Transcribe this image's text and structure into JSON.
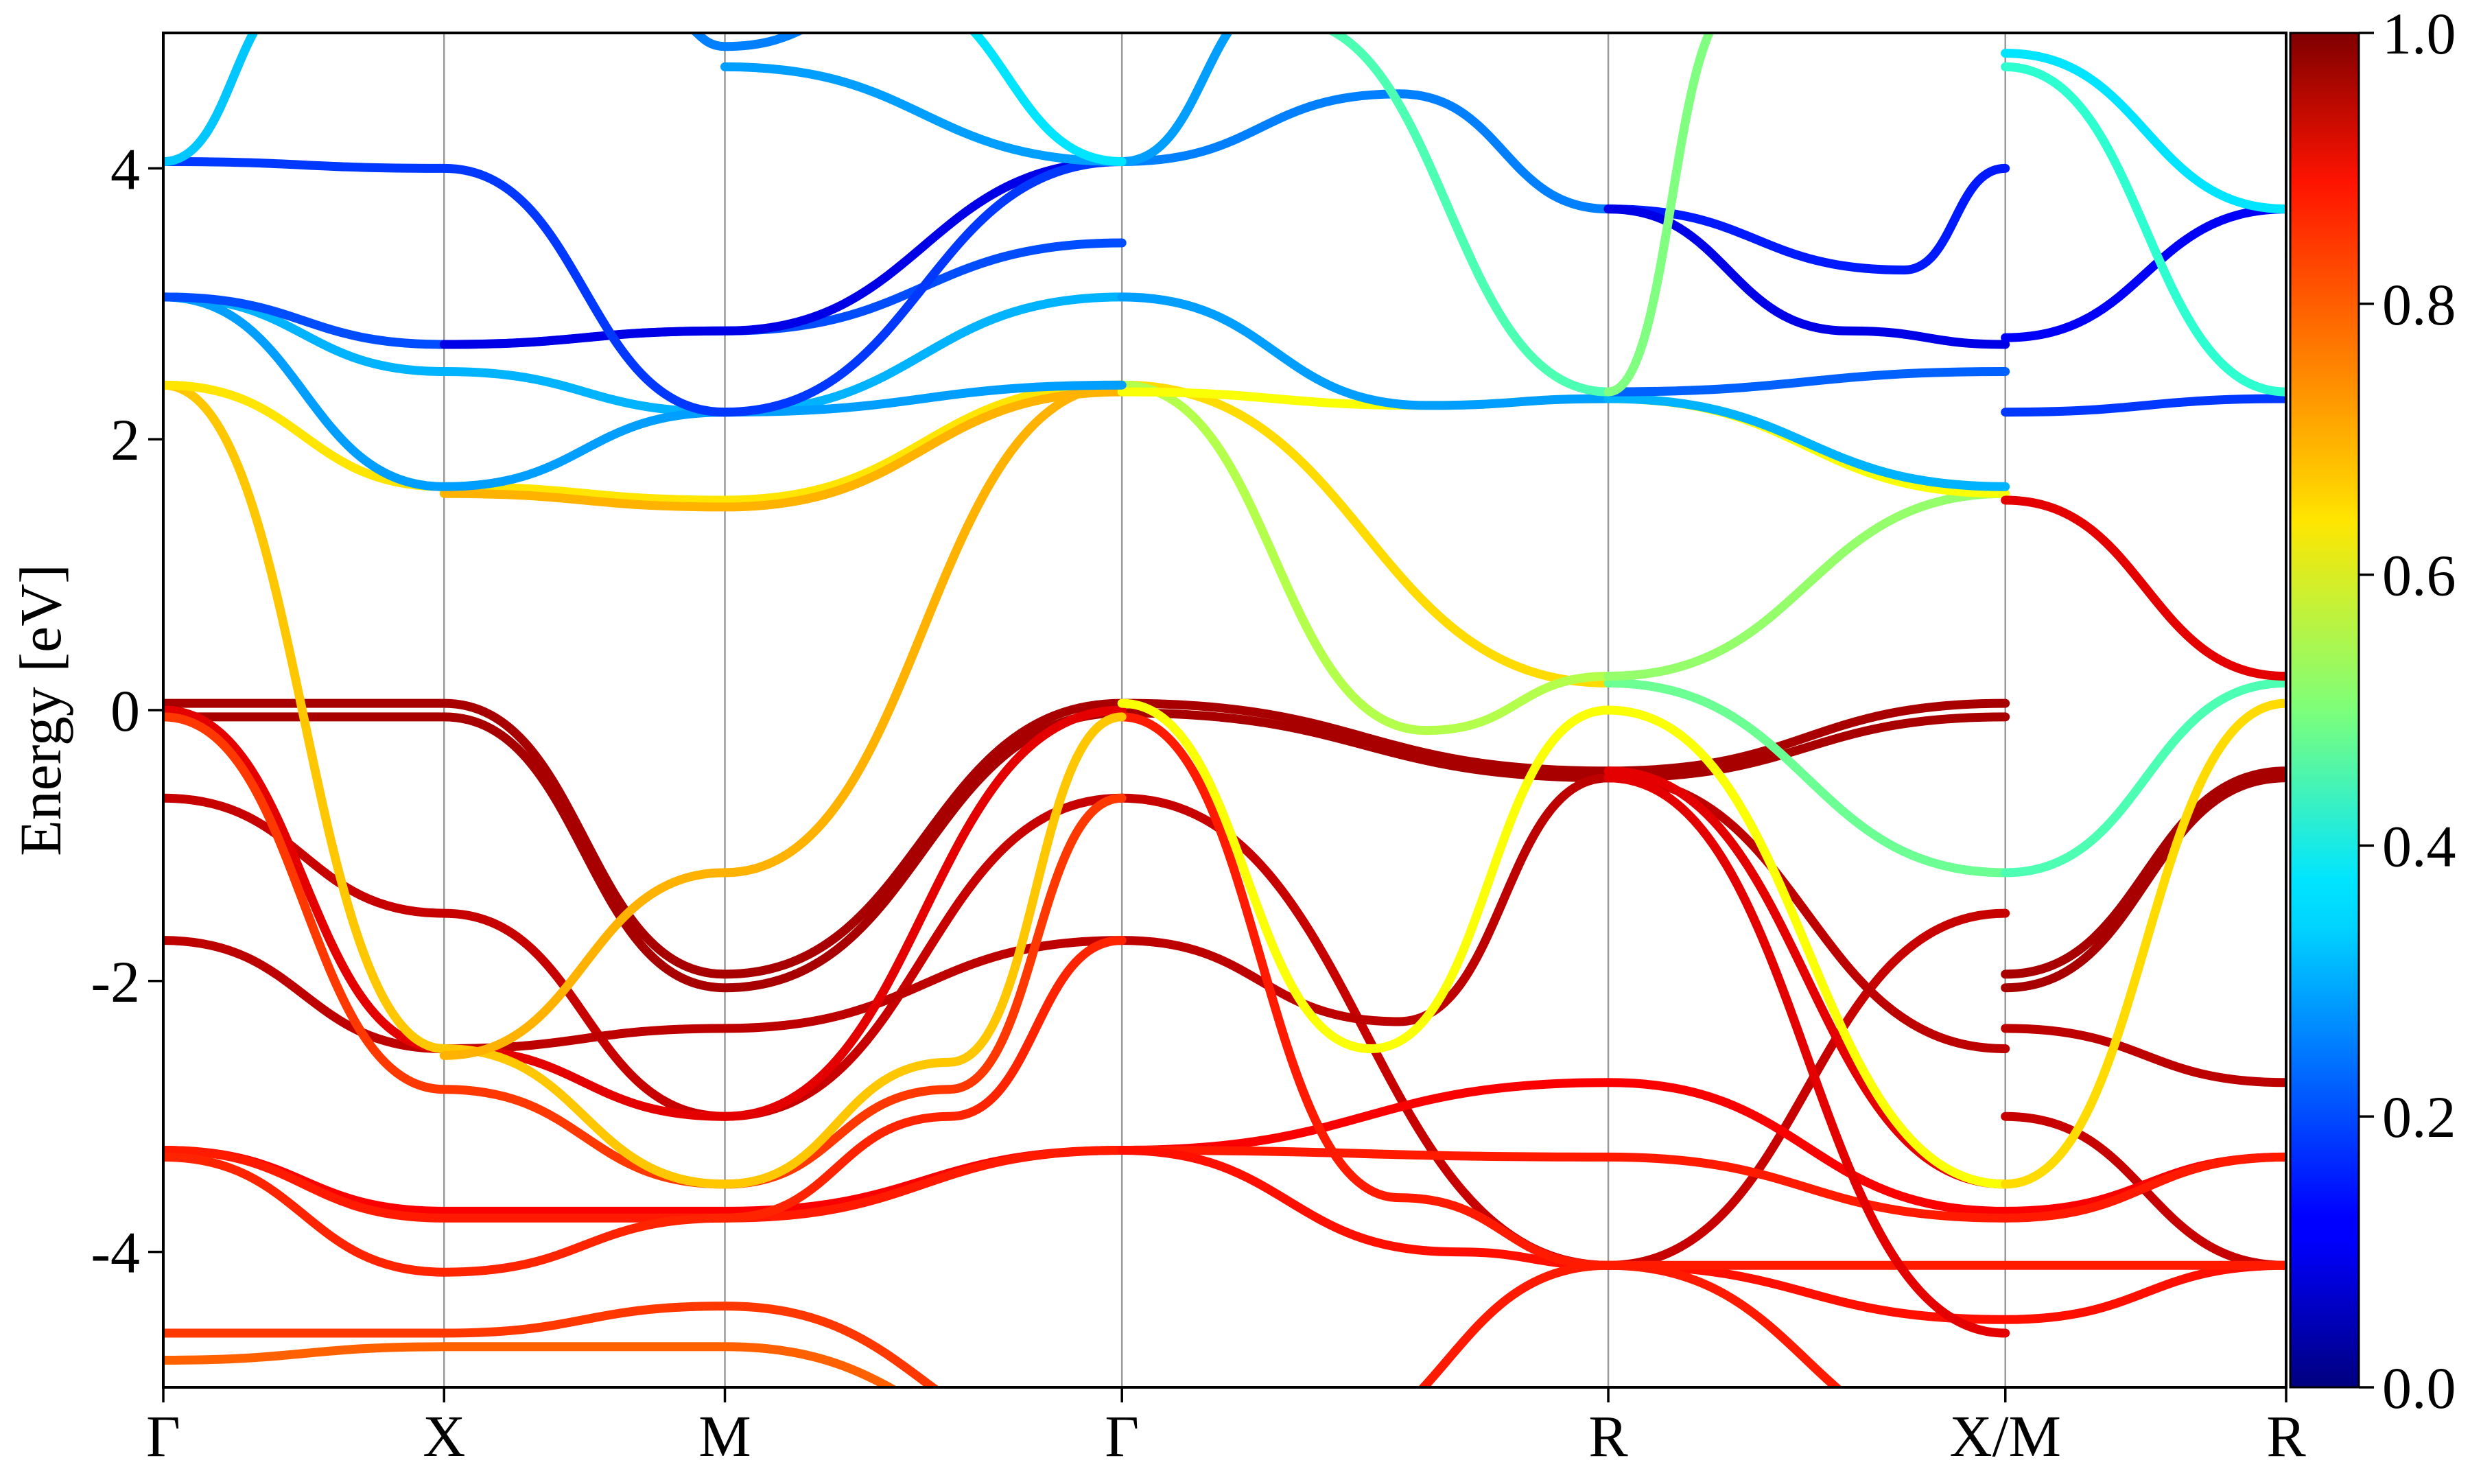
{
  "chart_data": {
    "type": "line",
    "ylabel": "Energy [eV]",
    "ylim": [
      -5,
      5
    ],
    "y_ticks": [
      "-4",
      "-2",
      "0",
      "2",
      "4"
    ],
    "grid": "vertical lines at high-symmetry points",
    "k_points": [
      {
        "label": "Γ",
        "k": 0.0
      },
      {
        "label": "X",
        "k": 0.5
      },
      {
        "label": "M",
        "k": 1.0
      },
      {
        "label": "Γ",
        "k": 1.707
      },
      {
        "label": "R",
        "k": 2.573
      },
      {
        "label": "X/M",
        "k": 3.28
      },
      {
        "label": "R",
        "k": 3.78
      }
    ],
    "colorbar": {
      "min": 0.0,
      "max": 1.0,
      "ticks": [
        "0.0",
        "0.2",
        "0.4",
        "0.6",
        "0.8",
        "1.0"
      ],
      "colormap": "jet"
    },
    "series": [
      {
        "color": 0.96,
        "points": [
          [
            0,
            0.05
          ],
          [
            0.5,
            0.05
          ],
          [
            1.0,
            -1.95
          ],
          [
            1.707,
            0.05
          ],
          [
            2.573,
            -0.45
          ],
          [
            3.28,
            0.05
          ]
        ]
      },
      {
        "color": 0.96,
        "points": [
          [
            0,
            -0.05
          ],
          [
            0.5,
            -0.05
          ],
          [
            1.0,
            -2.05
          ],
          [
            1.707,
            -0.02
          ],
          [
            2.573,
            -0.5
          ],
          [
            3.28,
            -0.05
          ]
        ]
      },
      {
        "color": 0.96,
        "points": [
          [
            3.28,
            -1.95
          ],
          [
            3.78,
            -0.45
          ]
        ]
      },
      {
        "color": 0.96,
        "points": [
          [
            3.28,
            -2.05
          ],
          [
            3.78,
            -0.5
          ]
        ]
      },
      {
        "color": 0.93,
        "points": [
          [
            0,
            -0.65
          ],
          [
            0.5,
            -1.5
          ],
          [
            1.0,
            -3.0
          ],
          [
            1.707,
            -0.65
          ],
          [
            2.573,
            -4.1
          ],
          [
            3.28,
            -1.5
          ]
        ]
      },
      {
        "color": 0.93,
        "points": [
          [
            3.28,
            -3.0
          ],
          [
            3.78,
            -4.1
          ]
        ]
      },
      {
        "color": 0.94,
        "points": [
          [
            0,
            -1.7
          ],
          [
            0.5,
            -2.5
          ],
          [
            1.0,
            -2.35
          ],
          [
            1.707,
            -1.7
          ],
          [
            2.2,
            -2.3
          ],
          [
            2.573,
            -0.5
          ]
        ]
      },
      {
        "color": 0.94,
        "points": [
          [
            2.573,
            -0.5
          ],
          [
            3.28,
            -2.5
          ]
        ]
      },
      {
        "color": 0.94,
        "points": [
          [
            3.28,
            -2.35
          ],
          [
            3.78,
            -2.75
          ]
        ]
      },
      {
        "color": 0.9,
        "points": [
          [
            0,
            0.0
          ],
          [
            0.5,
            -2.5
          ],
          [
            1.0,
            -3.0
          ],
          [
            1.707,
            0.0
          ]
        ]
      },
      {
        "color": 0.88,
        "points": [
          [
            0,
            -3.25
          ],
          [
            0.5,
            -3.7
          ],
          [
            1.0,
            -3.7
          ],
          [
            1.707,
            -3.25
          ],
          [
            2.573,
            -2.75
          ],
          [
            3.28,
            -3.7
          ]
        ]
      },
      {
        "color": 0.88,
        "points": [
          [
            3.28,
            -3.7
          ],
          [
            3.78,
            -3.3
          ]
        ]
      },
      {
        "color": 0.85,
        "points": [
          [
            0,
            -3.25
          ],
          [
            0.5,
            -3.75
          ],
          [
            1.0,
            -3.75
          ],
          [
            1.707,
            -3.25
          ],
          [
            2.573,
            -3.3
          ],
          [
            3.28,
            -3.75
          ]
        ]
      },
      {
        "color": 0.85,
        "points": [
          [
            3.28,
            -3.75
          ],
          [
            3.78,
            -3.3
          ]
        ]
      },
      {
        "color": 0.84,
        "points": [
          [
            0,
            -3.3
          ],
          [
            0.5,
            -4.15
          ],
          [
            1.0,
            -3.75
          ],
          [
            1.4,
            -3.0
          ],
          [
            1.707,
            -1.7
          ]
        ]
      },
      {
        "color": 0.86,
        "points": [
          [
            1.707,
            -3.25
          ],
          [
            2.3,
            -4.0
          ],
          [
            2.573,
            -4.1
          ],
          [
            3.28,
            -4.5
          ],
          [
            3.78,
            -4.1
          ]
        ]
      },
      {
        "color": 0.82,
        "points": [
          [
            0,
            -0.05
          ],
          [
            0.5,
            -2.8
          ],
          [
            1.0,
            -3.5
          ],
          [
            1.4,
            -2.8
          ],
          [
            1.707,
            -0.65
          ]
        ]
      },
      {
        "color": 0.85,
        "points": [
          [
            1.707,
            -0.05
          ],
          [
            2.2,
            -3.6
          ],
          [
            2.573,
            -4.1
          ],
          [
            3.28,
            -4.1
          ],
          [
            3.78,
            -4.1
          ]
        ]
      },
      {
        "color": 0.9,
        "points": [
          [
            2.573,
            -0.45
          ],
          [
            3.28,
            -3.5
          ]
        ]
      },
      {
        "color": 0.9,
        "points": [
          [
            2.573,
            -0.5
          ],
          [
            3.28,
            -4.6
          ]
        ]
      },
      {
        "color": 0.82,
        "points": [
          [
            0,
            -4.6
          ],
          [
            0.5,
            -4.6
          ],
          [
            1.0,
            -4.4
          ],
          [
            1.707,
            -5.5
          ]
        ]
      },
      {
        "color": 0.78,
        "points": [
          [
            0,
            -4.8
          ],
          [
            0.5,
            -4.7
          ],
          [
            1.0,
            -4.7
          ],
          [
            1.707,
            -5.6
          ]
        ]
      },
      {
        "color": 0.85,
        "points": [
          [
            2.0,
            -5.5
          ],
          [
            2.573,
            -4.1
          ],
          [
            3.28,
            -5.5
          ]
        ]
      },
      {
        "color": 0.68,
        "points": [
          [
            0,
            2.4
          ],
          [
            0.5,
            -2.5
          ],
          [
            1.0,
            -3.5
          ],
          [
            1.4,
            -2.6
          ],
          [
            1.707,
            -0.05
          ]
        ]
      },
      {
        "color": 0.62,
        "points": [
          [
            1.707,
            0.05
          ],
          [
            2.15,
            -2.5
          ],
          [
            2.573,
            0.0
          ],
          [
            3.28,
            -3.5
          ]
        ]
      },
      {
        "color": 0.66,
        "points": [
          [
            3.28,
            -3.5
          ],
          [
            3.78,
            0.05
          ]
        ]
      },
      {
        "color": 0.7,
        "points": [
          [
            0.5,
            -2.55
          ],
          [
            1.0,
            -1.2
          ],
          [
            1.707,
            2.4
          ]
        ]
      },
      {
        "color": 0.66,
        "points": [
          [
            1.707,
            2.4
          ],
          [
            2.573,
            0.2
          ]
        ]
      },
      {
        "color": 0.48,
        "points": [
          [
            2.573,
            0.2
          ],
          [
            3.28,
            -1.2
          ]
        ]
      },
      {
        "color": 0.45,
        "points": [
          [
            3.28,
            -1.2
          ],
          [
            3.78,
            0.2
          ]
        ]
      },
      {
        "color": 0.55,
        "points": [
          [
            1.707,
            2.4
          ],
          [
            2.25,
            -0.15
          ],
          [
            2.573,
            0.25
          ]
        ]
      },
      {
        "color": 0.52,
        "points": [
          [
            2.573,
            0.25
          ],
          [
            3.28,
            1.6
          ]
        ]
      },
      {
        "color": 0.65,
        "points": [
          [
            0,
            2.4
          ],
          [
            0.5,
            1.65
          ],
          [
            1.0,
            1.55
          ],
          [
            1.707,
            2.4
          ]
        ]
      },
      {
        "color": 0.7,
        "points": [
          [
            0.5,
            1.6
          ],
          [
            1.0,
            1.5
          ],
          [
            1.707,
            2.35
          ]
        ]
      },
      {
        "color": 0.62,
        "points": [
          [
            1.707,
            2.35
          ],
          [
            2.25,
            2.25
          ],
          [
            2.573,
            2.3
          ],
          [
            3.28,
            1.6
          ]
        ]
      },
      {
        "color": 0.9,
        "points": [
          [
            3.28,
            1.55
          ],
          [
            3.78,
            0.25
          ]
        ]
      },
      {
        "color": 0.3,
        "points": [
          [
            0,
            3.05
          ],
          [
            0.5,
            2.5
          ],
          [
            1.0,
            2.2
          ],
          [
            1.707,
            3.05
          ]
        ]
      },
      {
        "color": 0.28,
        "points": [
          [
            0,
            3.05
          ],
          [
            0.5,
            1.65
          ],
          [
            1.0,
            2.2
          ],
          [
            1.707,
            2.4
          ]
        ]
      },
      {
        "color": 0.28,
        "points": [
          [
            1.707,
            3.05
          ],
          [
            2.25,
            2.25
          ],
          [
            2.573,
            2.3
          ]
        ]
      },
      {
        "color": 0.3,
        "points": [
          [
            2.573,
            2.3
          ],
          [
            3.28,
            1.65
          ]
        ]
      },
      {
        "color": 0.2,
        "points": [
          [
            0,
            3.05
          ],
          [
            0.5,
            2.7
          ],
          [
            1.0,
            2.8
          ],
          [
            1.707,
            3.45
          ]
        ]
      },
      {
        "color": 0.1,
        "points": [
          [
            0.5,
            2.7
          ],
          [
            1.0,
            2.8
          ],
          [
            1.707,
            4.05
          ]
        ]
      },
      {
        "color": 0.18,
        "points": [
          [
            0,
            4.05
          ],
          [
            0.5,
            4.0
          ],
          [
            1.0,
            2.2
          ],
          [
            1.707,
            4.05
          ]
        ]
      },
      {
        "color": 0.25,
        "points": [
          [
            1.707,
            4.05
          ],
          [
            2.2,
            4.55
          ],
          [
            2.573,
            3.7
          ]
        ]
      },
      {
        "color": 0.15,
        "points": [
          [
            2.573,
            3.7
          ],
          [
            3.1,
            3.25
          ],
          [
            3.28,
            4.0
          ]
        ]
      },
      {
        "color": 0.1,
        "points": [
          [
            2.573,
            3.7
          ],
          [
            3.0,
            2.8
          ],
          [
            3.28,
            2.7
          ]
        ]
      },
      {
        "color": 0.22,
        "points": [
          [
            2.573,
            2.35
          ],
          [
            3.28,
            2.5
          ]
        ]
      },
      {
        "color": 0.12,
        "points": [
          [
            3.28,
            2.75
          ],
          [
            3.78,
            3.7
          ]
        ]
      },
      {
        "color": 0.18,
        "points": [
          [
            3.28,
            2.2
          ],
          [
            3.78,
            2.3
          ]
        ]
      },
      {
        "color": 0.35,
        "points": [
          [
            3.28,
            4.85
          ],
          [
            3.78,
            3.7
          ]
        ]
      },
      {
        "color": 0.42,
        "points": [
          [
            3.28,
            4.75
          ],
          [
            3.78,
            2.35
          ]
        ]
      },
      {
        "color": 0.32,
        "points": [
          [
            0,
            4.05
          ],
          [
            0.25,
            5.3
          ]
        ]
      },
      {
        "color": 0.28,
        "points": [
          [
            1.0,
            4.75
          ],
          [
            1.707,
            4.05
          ]
        ]
      },
      {
        "color": 0.28,
        "points": [
          [
            1.707,
            4.05
          ],
          [
            2.0,
            5.3
          ]
        ]
      },
      {
        "color": 0.35,
        "points": [
          [
            1.3,
            5.3
          ],
          [
            1.707,
            4.05
          ]
        ]
      },
      {
        "color": 0.45,
        "points": [
          [
            2.0,
            5.1
          ],
          [
            2.573,
            2.35
          ]
        ]
      },
      {
        "color": 0.5,
        "points": [
          [
            2.573,
            2.35
          ],
          [
            2.8,
            5.2
          ]
        ]
      },
      {
        "color": 0.25,
        "points": [
          [
            0.9,
            5.1
          ],
          [
            1.0,
            4.9
          ],
          [
            1.3,
            5.2
          ]
        ]
      }
    ]
  }
}
